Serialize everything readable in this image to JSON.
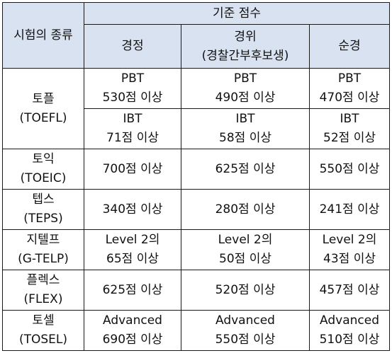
{
  "header": {
    "exam_type": "시험의 종류",
    "criteria": "기준 점수",
    "col_1": "경정",
    "col_2_line1": "경위",
    "col_2_line2": "(경찰간부후보생)",
    "col_3": "순경"
  },
  "rows": [
    {
      "exam_line1": "토플",
      "exam_line2": "(TOEFL)",
      "sub": [
        {
          "s1a": "PBT",
          "s1b": "530점 이상",
          "s2a": "PBT",
          "s2b": "490점 이상",
          "s3a": "PBT",
          "s3b": "470점 이상"
        },
        {
          "s1a": "IBT",
          "s1b": "71점 이상",
          "s2a": "IBT",
          "s2b": "58점 이상",
          "s3a": "IBT",
          "s3b": "52점 이상"
        }
      ]
    },
    {
      "exam_line1": "토익",
      "exam_line2": "(TOEIC)",
      "s1": "700점 이상",
      "s2": "625점 이상",
      "s3": "550점 이상"
    },
    {
      "exam_line1": "텝스",
      "exam_line2": "(TEPS)",
      "s1": "340점 이상",
      "s2": "280점 이상",
      "s3": "241점 이상"
    },
    {
      "exam_line1": "지텔프",
      "exam_line2": "(G-TELP)",
      "s1a": "Level 2의",
      "s1b": "65점 이상",
      "s2a": "Level 2의",
      "s2b": "50점 이상",
      "s3a": "Level 2의",
      "s3b": "43점 이상"
    },
    {
      "exam_line1": "플렉스",
      "exam_line2": "(FLEX)",
      "s1": "625점 이상",
      "s2": "520점 이상",
      "s3": "457점 이상"
    },
    {
      "exam_line1": "토셀",
      "exam_line2": "(TOSEL)",
      "s1a": "Advanced",
      "s1b": "690점 이상",
      "s2a": "Advanced",
      "s2b": "550점 이상",
      "s3a": "Advanced",
      "s3b": "510점 이상"
    }
  ]
}
